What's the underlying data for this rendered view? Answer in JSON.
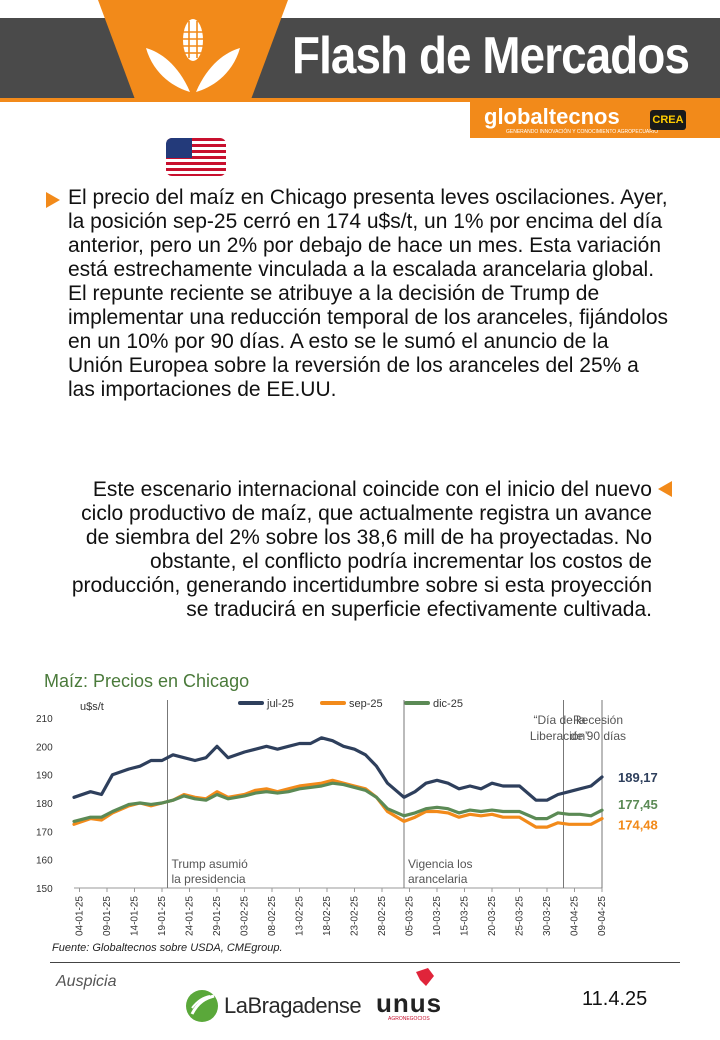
{
  "header": {
    "title": "Flash de Mercados",
    "brand": "globaltecnos",
    "brand_tagline": "GENERANDO INNOVACIÓN Y CONOCIMIENTO AGROPECUARIO",
    "partner": "CREA",
    "accent_color": "#f28a1a",
    "bar_color": "#4a4a4a",
    "icons": [
      "corn-icon",
      "us-flag-icon"
    ]
  },
  "body": {
    "paragraph1": "El precio del maíz en Chicago presenta leves oscilaciones. Ayer, la posición sep-25 cerró en 174 u$s/t, un 1% por encima del día anterior, pero un 2% por debajo de hace un mes. Esta variación está estrechamente vinculada a la escalada arancelaria global. El repunte reciente se atribuye a la decisión de Trump de implementar una reducción temporal de los aranceles, fijándolos en un 10% por 90 días. A esto se le sumó el anuncio de la Unión Europea sobre la reversión de los aranceles del 25% a las importaciones de EE.UU.",
    "paragraph2": "Este escenario internacional coincide con el inicio del nuevo ciclo productivo de maíz, que actualmente registra un avance de siembra del 2% sobre los 38,6 mill de ha proyectadas. No obstante, el conflicto podría incrementar los costos de producción, generando incertidumbre sobre si esta proyección se traducirá en superficie efectivamente cultivada."
  },
  "chart_data": {
    "type": "line",
    "title": "Maíz: Precios en Chicago",
    "ylabel": "u$s/t",
    "ylim": [
      150,
      210
    ],
    "yticks": [
      "150",
      "160",
      "170",
      "180",
      "190",
      "200",
      "210"
    ],
    "xtick_labels": [
      "04-01-25",
      "09-01-25",
      "14-01-25",
      "19-01-25",
      "24-01-25",
      "29-01-25",
      "03-02-25",
      "08-02-25",
      "13-02-25",
      "18-02-25",
      "23-02-25",
      "28-02-25",
      "05-03-25",
      "10-03-25",
      "15-03-25",
      "20-03-25",
      "25-03-25",
      "30-03-25",
      "04-04-25",
      "09-04-25"
    ],
    "x_start": "03-01-25",
    "x_end": "09-04-25",
    "legend_position": "top",
    "series": [
      {
        "name": "jul-25",
        "color": "#2e3f5c",
        "end_label": "189,17",
        "points": [
          [
            "03-01",
            182
          ],
          [
            "06-01",
            184
          ],
          [
            "08-01",
            183
          ],
          [
            "10-01",
            190
          ],
          [
            "13-01",
            192
          ],
          [
            "15-01",
            193
          ],
          [
            "17-01",
            195
          ],
          [
            "19-01",
            195
          ],
          [
            "21-01",
            197
          ],
          [
            "23-01",
            196
          ],
          [
            "25-01",
            195
          ],
          [
            "27-01",
            196
          ],
          [
            "29-01",
            200
          ],
          [
            "31-01",
            196
          ],
          [
            "03-02",
            198
          ],
          [
            "05-02",
            199
          ],
          [
            "07-02",
            200
          ],
          [
            "09-02",
            199
          ],
          [
            "11-02",
            200
          ],
          [
            "13-02",
            201
          ],
          [
            "15-02",
            201
          ],
          [
            "17-02",
            203
          ],
          [
            "19-02",
            202
          ],
          [
            "21-02",
            200
          ],
          [
            "23-02",
            199
          ],
          [
            "25-02",
            197
          ],
          [
            "27-02",
            193
          ],
          [
            "01-03",
            187
          ],
          [
            "04-03",
            182
          ],
          [
            "06-03",
            184
          ],
          [
            "08-03",
            187
          ],
          [
            "10-03",
            188
          ],
          [
            "12-03",
            187
          ],
          [
            "14-03",
            185
          ],
          [
            "16-03",
            186
          ],
          [
            "18-03",
            185
          ],
          [
            "20-03",
            187
          ],
          [
            "22-03",
            186
          ],
          [
            "25-03",
            186
          ],
          [
            "28-03",
            181
          ],
          [
            "30-03",
            181
          ],
          [
            "01-04",
            183
          ],
          [
            "03-04",
            184
          ],
          [
            "05-04",
            185
          ],
          [
            "07-04",
            186
          ],
          [
            "09-04",
            189.17
          ]
        ]
      },
      {
        "name": "sep-25",
        "color": "#f28a1a",
        "end_label": "174,48",
        "points": [
          [
            "03-01",
            172.5
          ],
          [
            "06-01",
            174.5
          ],
          [
            "08-01",
            174
          ],
          [
            "10-01",
            176.5
          ],
          [
            "13-01",
            179
          ],
          [
            "15-01",
            180
          ],
          [
            "17-01",
            179
          ],
          [
            "19-01",
            180
          ],
          [
            "21-01",
            181
          ],
          [
            "23-01",
            183
          ],
          [
            "25-01",
            182
          ],
          [
            "27-01",
            181.5
          ],
          [
            "29-01",
            184
          ],
          [
            "31-01",
            182
          ],
          [
            "03-02",
            183
          ],
          [
            "05-02",
            184.5
          ],
          [
            "07-02",
            185
          ],
          [
            "09-02",
            184
          ],
          [
            "11-02",
            185
          ],
          [
            "13-02",
            186
          ],
          [
            "15-02",
            186.5
          ],
          [
            "17-02",
            187
          ],
          [
            "19-02",
            188
          ],
          [
            "21-02",
            187
          ],
          [
            "23-02",
            186
          ],
          [
            "25-02",
            185
          ],
          [
            "27-02",
            182
          ],
          [
            "01-03",
            177
          ],
          [
            "04-03",
            173.5
          ],
          [
            "06-03",
            175
          ],
          [
            "08-03",
            177
          ],
          [
            "10-03",
            177
          ],
          [
            "12-03",
            176.5
          ],
          [
            "14-03",
            175
          ],
          [
            "16-03",
            176
          ],
          [
            "18-03",
            175.5
          ],
          [
            "20-03",
            176
          ],
          [
            "22-03",
            175
          ],
          [
            "25-03",
            175
          ],
          [
            "28-03",
            171.5
          ],
          [
            "30-03",
            171.5
          ],
          [
            "01-04",
            173
          ],
          [
            "03-04",
            172.5
          ],
          [
            "05-04",
            172.5
          ],
          [
            "07-04",
            172.5
          ],
          [
            "09-04",
            174.48
          ]
        ]
      },
      {
        "name": "dic-25",
        "color": "#5b8a55",
        "end_label": "177,45",
        "points": [
          [
            "03-01",
            173.5
          ],
          [
            "06-01",
            175
          ],
          [
            "08-01",
            175
          ],
          [
            "10-01",
            177
          ],
          [
            "13-01",
            179.5
          ],
          [
            "15-01",
            180
          ],
          [
            "17-01",
            179.5
          ],
          [
            "19-01",
            180
          ],
          [
            "21-01",
            181
          ],
          [
            "23-01",
            182.5
          ],
          [
            "25-01",
            181.5
          ],
          [
            "27-01",
            181
          ],
          [
            "29-01",
            183
          ],
          [
            "31-01",
            181.5
          ],
          [
            "03-02",
            182.5
          ],
          [
            "05-02",
            183.5
          ],
          [
            "07-02",
            184
          ],
          [
            "09-02",
            183.5
          ],
          [
            "11-02",
            184
          ],
          [
            "13-02",
            185
          ],
          [
            "15-02",
            185.5
          ],
          [
            "17-02",
            186
          ],
          [
            "19-02",
            187
          ],
          [
            "21-02",
            186.5
          ],
          [
            "23-02",
            185.5
          ],
          [
            "25-02",
            184.5
          ],
          [
            "27-02",
            182
          ],
          [
            "01-03",
            178
          ],
          [
            "04-03",
            175.5
          ],
          [
            "06-03",
            176.5
          ],
          [
            "08-03",
            178
          ],
          [
            "10-03",
            178.5
          ],
          [
            "12-03",
            178
          ],
          [
            "14-03",
            176.5
          ],
          [
            "16-03",
            177.5
          ],
          [
            "18-03",
            177
          ],
          [
            "20-03",
            177.5
          ],
          [
            "22-03",
            177
          ],
          [
            "25-03",
            177
          ],
          [
            "28-03",
            174.5
          ],
          [
            "30-03",
            174.5
          ],
          [
            "01-04",
            176.5
          ],
          [
            "03-04",
            176
          ],
          [
            "05-04",
            176
          ],
          [
            "07-04",
            175.5
          ],
          [
            "09-04",
            177.45
          ]
        ]
      }
    ],
    "annotations": [
      {
        "date": "20-01-25",
        "text": [
          "Trump asumió",
          "la presidencia"
        ],
        "position": "bottom"
      },
      {
        "date": "04-03-25",
        "text": [
          "Vigencia los",
          "arancelaria"
        ],
        "position": "bottom"
      },
      {
        "date": "02-04-25",
        "text": [
          "“Día de la",
          "Liberación”"
        ],
        "position": "top"
      },
      {
        "date": "09-04-25",
        "text": [
          "Recesión",
          "de 90 días"
        ],
        "position": "top"
      }
    ],
    "grid": false,
    "source": "Fuente: Globaltecnos sobre USDA, CMEgroup."
  },
  "footer": {
    "sponsor_label": "Auspicia",
    "sponsor1": "LaBragadense",
    "sponsor2": "unus",
    "sponsor2_tagline": "AGRONEGOCIOS",
    "date": "11.4.25"
  }
}
